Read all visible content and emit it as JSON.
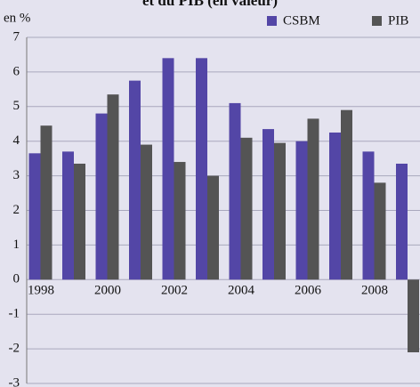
{
  "chart_data": {
    "type": "bar",
    "title": "et du PIB (en valeur)",
    "y_label": "en %",
    "categories": [
      "1998",
      null,
      "2000",
      null,
      "2002",
      null,
      "2004",
      null,
      "2006",
      null,
      "2008",
      null
    ],
    "series": [
      {
        "name": "CSBM",
        "color": "#5346a6",
        "values": [
          3.65,
          3.7,
          4.8,
          5.75,
          6.4,
          6.4,
          5.1,
          4.35,
          4.0,
          4.25,
          3.7,
          3.35
        ]
      },
      {
        "name": "PIB",
        "color": "#545454",
        "values": [
          4.45,
          3.35,
          5.35,
          3.9,
          3.4,
          3.0,
          4.1,
          3.95,
          4.65,
          4.9,
          2.8,
          -2.1
        ]
      }
    ],
    "ylim": [
      -3,
      7
    ],
    "yticks": [
      -3,
      -2,
      -1,
      0,
      1,
      2,
      3,
      4,
      5,
      6,
      7
    ],
    "grid": true,
    "legend": "top-right"
  }
}
